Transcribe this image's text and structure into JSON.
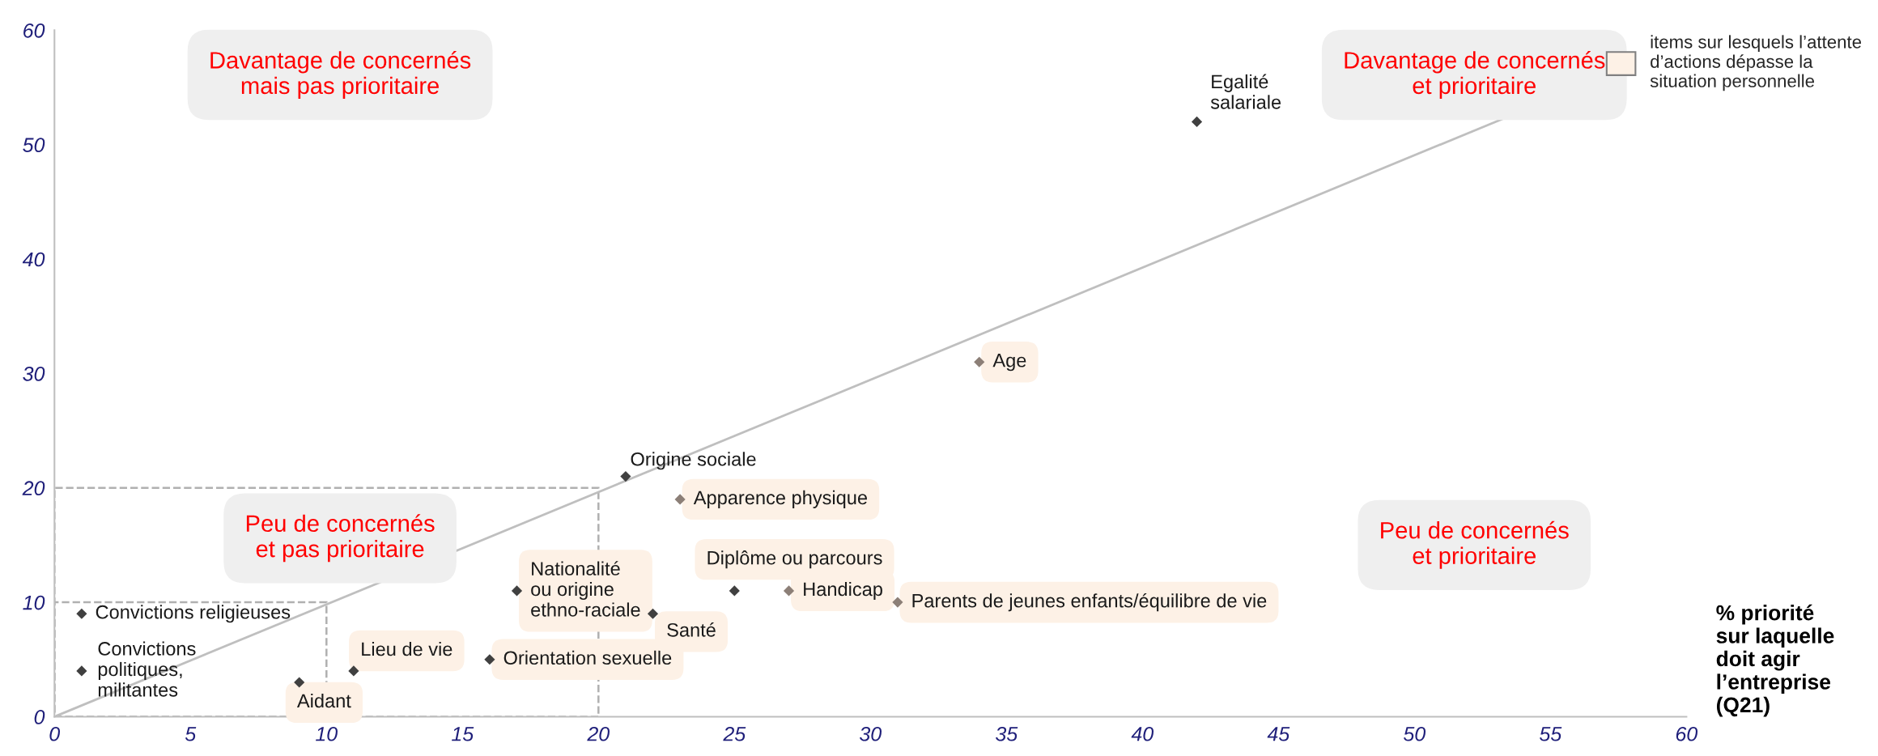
{
  "chart_data": {
    "type": "scatter",
    "xlabel": "% priorité\nsur laquelle\ndoit agir\nl’entreprise\n(Q21)",
    "annotations": [
      "Davantage de concernés\nmais pas prioritaire",
      "Davantage de concernés\net prioritaire",
      "Peu de concernés\net pas prioritaire",
      "Peu de concernés\net prioritaire"
    ],
    "series": [
      {
        "x": [
          42,
          21,
          1,
          1
        ],
        "values": [
          52,
          21,
          9,
          4
        ],
        "colors": [
          "#404040",
          "#404040",
          "#404040",
          "#404040"
        ],
        "value_labels": [
          "Egalité\nsalariale",
          "Origine sociale",
          "Convictions religieuses",
          "Convictions\npolitiques,\nmilitantes"
        ]
      },
      {
        "name": "items sur lesquels l’attente\nd’actions dépasse la\nsituation personnelle",
        "color": "#fdf1e6",
        "x": [
          34,
          23,
          25,
          27,
          31,
          17,
          22,
          16,
          11,
          9
        ],
        "values": [
          31,
          19,
          11,
          11,
          10,
          11,
          9,
          5,
          4,
          3
        ],
        "colors": [
          "#8c7f77",
          "#8c7f77",
          "#404040",
          "#8c7f77",
          "#8c7f77",
          "#404040",
          "#404040",
          "#404040",
          "#404040",
          "#404040"
        ],
        "value_labels": [
          "Age",
          "Apparence physique",
          "Diplôme ou parcours",
          "Handicap",
          "Parents de jeunes enfants/équilibre de vie",
          "Nationalité\nou origine\nethno-raciale",
          "Santé",
          "Orientation sexuelle",
          "Lieu de vie",
          "Aidant"
        ]
      }
    ],
    "marker": "diamond",
    "xlim": [
      0,
      60
    ],
    "ylim": [
      0,
      60
    ],
    "xticks": [
      0,
      5,
      10,
      15,
      20,
      25,
      30,
      35,
      40,
      45,
      50,
      55,
      60
    ],
    "yticks": [
      0,
      10,
      20,
      30,
      40,
      50,
      60
    ],
    "grid": false,
    "legend": "top right"
  }
}
